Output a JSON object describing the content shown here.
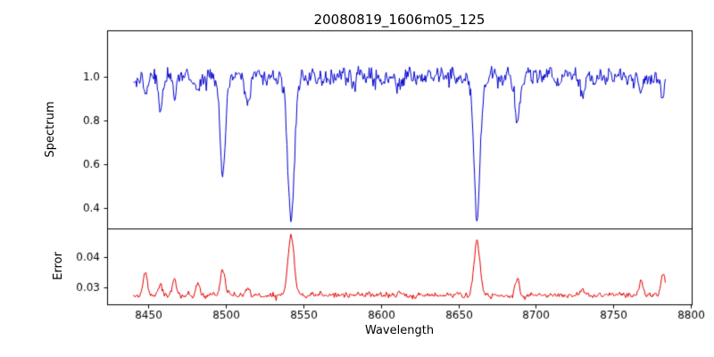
{
  "chart_data": {
    "type": "line",
    "title": "20080819_1606m05_125",
    "xlabel": "Wavelength",
    "xlim": [
      8423.5,
      8800.5
    ],
    "xticks": [
      {
        "v": 8450,
        "label": "8450"
      },
      {
        "v": 8500,
        "label": "8500"
      },
      {
        "v": 8550,
        "label": "8550"
      },
      {
        "v": 8600,
        "label": "8600"
      },
      {
        "v": 8650,
        "label": "8650"
      },
      {
        "v": 8700,
        "label": "8700"
      },
      {
        "v": 8750,
        "label": "8750"
      },
      {
        "v": 8800,
        "label": "8800"
      }
    ],
    "sampling_step": 0.5,
    "grid": false,
    "legend": "none",
    "panels": [
      {
        "name": "spectrum",
        "ylabel": "Spectrum",
        "ylim": [
          0.305,
          1.21
        ],
        "yticks": [
          {
            "v": 0.4,
            "label": "0.4"
          },
          {
            "v": 0.6,
            "label": "0.6"
          },
          {
            "v": 0.8,
            "label": "0.8"
          },
          {
            "v": 1.0,
            "label": "1.0"
          }
        ],
        "color": "#0000cc",
        "series": {
          "name": "Spectrum",
          "x_start": 8440.5,
          "x_end": 8783.5,
          "continuum": 1.0,
          "noise_sigma": 0.022,
          "noise_seed": 42,
          "absorption_lines": [
            {
              "center": 8448.0,
              "depth": 0.1,
              "width": 1.2
            },
            {
              "center": 8458.0,
              "depth": 0.17,
              "width": 1.3
            },
            {
              "center": 8467.0,
              "depth": 0.1,
              "width": 1.2
            },
            {
              "center": 8482.0,
              "depth": 0.08,
              "width": 1.2
            },
            {
              "center": 8498.0,
              "depth": 0.45,
              "width": 1.7
            },
            {
              "center": 8514.0,
              "depth": 0.12,
              "width": 1.4
            },
            {
              "center": 8542.1,
              "depth": 0.66,
              "width": 2.1
            },
            {
              "center": 8570.0,
              "depth": 0.06,
              "width": 1.2
            },
            {
              "center": 8583.0,
              "depth": 0.05,
              "width": 1.2
            },
            {
              "center": 8611.0,
              "depth": 0.05,
              "width": 1.2
            },
            {
              "center": 8662.1,
              "depth": 0.65,
              "width": 2.0
            },
            {
              "center": 8688.0,
              "depth": 0.22,
              "width": 1.5
            },
            {
              "center": 8714.0,
              "depth": 0.06,
              "width": 1.2
            },
            {
              "center": 8730.0,
              "depth": 0.08,
              "width": 1.3
            },
            {
              "center": 8768.0,
              "depth": 0.09,
              "width": 1.3
            },
            {
              "center": 8782.0,
              "depth": 0.11,
              "width": 1.3
            }
          ]
        }
      },
      {
        "name": "error",
        "ylabel": "Error",
        "ylim": [
          0.0245,
          0.0493
        ],
        "yticks": [
          {
            "v": 0.03,
            "label": "0.03"
          },
          {
            "v": 0.04,
            "label": "0.04"
          }
        ],
        "color": "#e00000",
        "series": {
          "name": "Error",
          "x_start": 8440.5,
          "x_end": 8783.5,
          "baseline": 0.0275,
          "noise_sigma": 0.0005,
          "noise_seed": 7,
          "peaks": [
            {
              "center": 8448.0,
              "amp": 0.0075,
              "width": 1.2
            },
            {
              "center": 8458.0,
              "amp": 0.003,
              "width": 1.2
            },
            {
              "center": 8467.0,
              "amp": 0.005,
              "width": 1.2
            },
            {
              "center": 8482.0,
              "amp": 0.004,
              "width": 1.2
            },
            {
              "center": 8498.0,
              "amp": 0.008,
              "width": 1.6
            },
            {
              "center": 8514.0,
              "amp": 0.002,
              "width": 1.2
            },
            {
              "center": 8542.1,
              "amp": 0.0195,
              "width": 2.0
            },
            {
              "center": 8662.1,
              "amp": 0.0177,
              "width": 1.9
            },
            {
              "center": 8688.0,
              "amp": 0.0045,
              "width": 1.4
            },
            {
              "center": 8730.0,
              "amp": 0.002,
              "width": 1.2
            },
            {
              "center": 8768.0,
              "amp": 0.0045,
              "width": 1.3
            },
            {
              "center": 8782.0,
              "amp": 0.0065,
              "width": 1.3
            }
          ]
        }
      }
    ]
  }
}
